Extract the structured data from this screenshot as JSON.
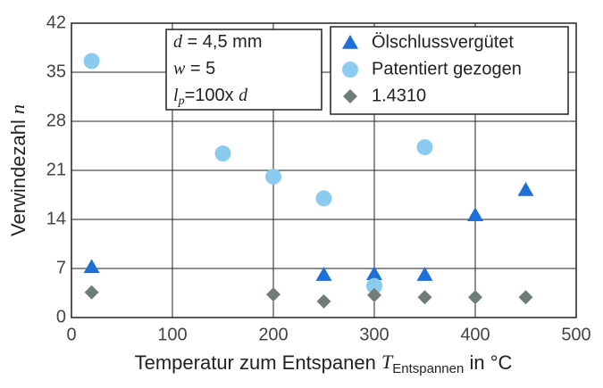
{
  "chart_data": {
    "type": "scatter",
    "ylabel": "Verwindezahl",
    "ylabel_symbol": "n",
    "xlabel": "Temperatur zum Entspanen",
    "xlabel_symbol": "T",
    "xlabel_subscript": "Entspannen",
    "xlabel_suffix": "in °C",
    "annotations": [
      [
        "d",
        " = 4,5 mm"
      ],
      [
        "w",
        " = 5"
      ],
      [
        "l",
        "p",
        "=100x ",
        "d"
      ]
    ],
    "xlim": [
      0,
      500
    ],
    "xticks": [
      0,
      100,
      200,
      300,
      400,
      500
    ],
    "ylim": [
      0,
      42
    ],
    "yticks": [
      0,
      7,
      14,
      21,
      28,
      35,
      42
    ],
    "grid": true,
    "legend": "top-right",
    "series": [
      {
        "name": "Ölschlussvergütet",
        "color": "#1e6fd6",
        "marker": "triangle",
        "x": [
          20,
          250,
          300,
          350,
          400,
          450
        ],
        "values": [
          7.2,
          6.1,
          6.2,
          6.1,
          14.6,
          18.2
        ]
      },
      {
        "name": "Patentiert gezogen",
        "color": "#8ccbf0",
        "marker": "circle",
        "x": [
          20,
          150,
          200,
          250,
          300,
          350
        ],
        "values": [
          36.6,
          23.4,
          20.1,
          17.0,
          4.5,
          24.3
        ]
      },
      {
        "name": "1.4310",
        "color": "#6e7d78",
        "marker": "diamond",
        "x": [
          20,
          200,
          250,
          300,
          350,
          400,
          450
        ],
        "values": [
          3.6,
          3.3,
          2.3,
          3.2,
          2.9,
          2.9,
          2.9
        ]
      }
    ]
  }
}
